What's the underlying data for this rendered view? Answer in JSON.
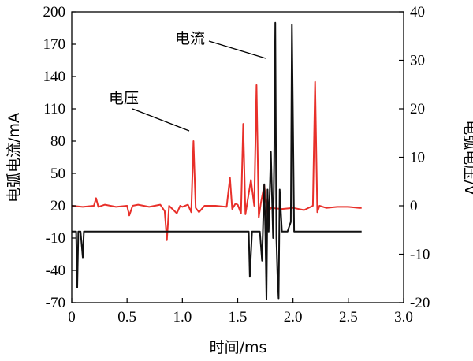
{
  "chart_data": {
    "type": "line",
    "xlabel": "时间/ms",
    "ylabel_left": "电弧电流/mA",
    "ylabel_right": "电弧电压/V",
    "xlim": [
      0,
      3.0
    ],
    "ylim_left": [
      -70,
      200
    ],
    "ylim_right": [
      -20,
      40
    ],
    "x_ticks": [
      "0",
      "0.5",
      "1.0",
      "1.5",
      "2.0",
      "2.5",
      "3.0"
    ],
    "x_tick_values": [
      0,
      0.5,
      1.0,
      1.5,
      2.0,
      2.5,
      3.0
    ],
    "y_left_ticks": [
      "-70",
      "-40",
      "-10",
      "20",
      "50",
      "80",
      "110",
      "140",
      "170",
      "200"
    ],
    "y_left_tick_values": [
      -70,
      -40,
      -10,
      20,
      50,
      80,
      110,
      140,
      170,
      200
    ],
    "y_right_ticks": [
      "-20",
      "-10",
      "0",
      "10",
      "20",
      "30",
      "40"
    ],
    "y_right_tick_values": [
      -20,
      -10,
      0,
      10,
      20,
      30,
      40
    ],
    "grid": false,
    "annotations": [
      {
        "text": "电流",
        "series": "current"
      },
      {
        "text": "电压",
        "series": "voltage"
      }
    ],
    "series": [
      {
        "color": "#e8302a",
        "axis": "left",
        "x": [
          0.0,
          0.1,
          0.2,
          0.22,
          0.24,
          0.3,
          0.4,
          0.5,
          0.52,
          0.55,
          0.6,
          0.7,
          0.8,
          0.84,
          0.86,
          0.88,
          0.95,
          0.98,
          1.0,
          1.05,
          1.08,
          1.1,
          1.12,
          1.15,
          1.2,
          1.3,
          1.4,
          1.43,
          1.45,
          1.48,
          1.5,
          1.53,
          1.55,
          1.57,
          1.59,
          1.62,
          1.65,
          1.67,
          1.69,
          1.71,
          1.74,
          1.77,
          1.8,
          1.9,
          2.0,
          2.1,
          2.18,
          2.2,
          2.22,
          2.24,
          2.3,
          2.4,
          2.5,
          2.6,
          2.62
        ],
        "y": [
          20,
          19,
          20,
          27,
          19,
          21,
          19,
          20,
          11,
          20,
          21,
          19,
          21,
          15,
          -12,
          20,
          13,
          20,
          19,
          21,
          14,
          80,
          18,
          14,
          20,
          20,
          19,
          46,
          17,
          22,
          21,
          13,
          96,
          12,
          25,
          44,
          20,
          132,
          9,
          23,
          39,
          12,
          18,
          17,
          18,
          16,
          20,
          135,
          14,
          20,
          18,
          19,
          19,
          18,
          18
        ]
      },
      {
        "color": "#111111",
        "axis": "left",
        "x": [
          0.0,
          0.04,
          0.05,
          0.06,
          0.08,
          0.1,
          0.11,
          0.12,
          0.2,
          0.5,
          1.0,
          1.5,
          1.6,
          1.61,
          1.63,
          1.65,
          1.7,
          1.72,
          1.74,
          1.75,
          1.76,
          1.77,
          1.78,
          1.8,
          1.82,
          1.83,
          1.84,
          1.85,
          1.86,
          1.87,
          1.88,
          1.9,
          1.92,
          1.95,
          1.98,
          1.99,
          2.01,
          2.05,
          2.1,
          2.3,
          2.5,
          2.62
        ],
        "y": [
          -4,
          -4,
          -56,
          -4,
          -4,
          -28,
          -4,
          -4,
          -4,
          -4,
          -4,
          -4,
          -4,
          -46,
          -4,
          -4,
          -4,
          -31,
          40,
          -4,
          -67,
          35,
          -4,
          70,
          -10,
          62,
          190,
          -10,
          -45,
          -66,
          35,
          -4,
          -4,
          -4,
          5,
          188,
          -4,
          -4,
          -4,
          -4,
          -4,
          -4
        ]
      }
    ]
  }
}
